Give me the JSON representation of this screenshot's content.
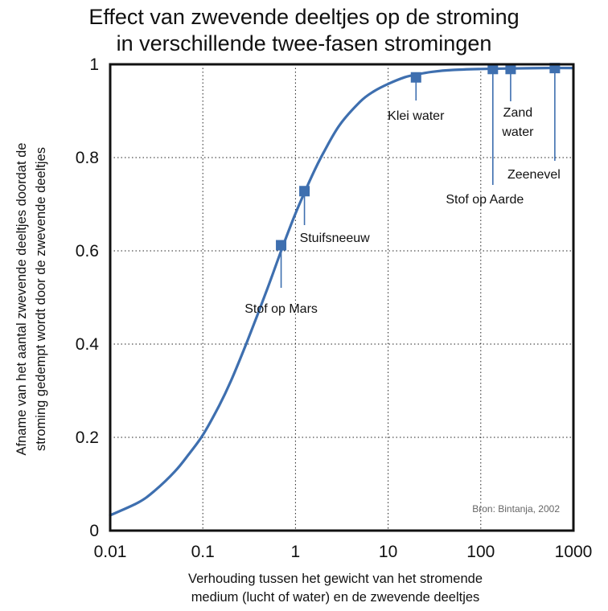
{
  "chart_data": {
    "type": "line",
    "title": [
      "Effect van zwevende deeltjes op de stroming",
      "in verschillende twee-fasen stromingen"
    ],
    "xlabel": [
      "Verhouding tussen het gewicht van het stromende",
      "medium (lucht of water) en de zwevende deeltjes"
    ],
    "ylabel": [
      "Afname van het aantal zwevende deeltjes doordat de",
      "stroming gedempt wordt door de zwevende deeltjes"
    ],
    "x_scale": "log",
    "xlim": [
      0.01,
      1000
    ],
    "ylim": [
      0,
      1
    ],
    "grid": true,
    "x_ticks": [
      {
        "v": 0.01,
        "label": "0.01"
      },
      {
        "v": 0.1,
        "label": "0.1"
      },
      {
        "v": 1,
        "label": "1"
      },
      {
        "v": 10,
        "label": "10"
      },
      {
        "v": 100,
        "label": "100"
      },
      {
        "v": 1000,
        "label": "1000"
      }
    ],
    "y_ticks": [
      {
        "v": 0,
        "label": "0"
      },
      {
        "v": 0.2,
        "label": "0.2"
      },
      {
        "v": 0.4,
        "label": "0.4"
      },
      {
        "v": 0.6,
        "label": "0.6"
      },
      {
        "v": 0.8,
        "label": "0.8"
      },
      {
        "v": 1,
        "label": "1"
      }
    ],
    "curve": {
      "x": [
        0.01,
        0.02,
        0.03,
        0.05,
        0.07,
        0.1,
        0.15,
        0.2,
        0.3,
        0.5,
        0.7,
        1,
        1.5,
        2,
        3,
        5,
        7,
        10,
        15,
        20,
        30,
        50,
        100,
        200,
        500,
        1000
      ],
      "y": [
        0.033,
        0.06,
        0.085,
        0.127,
        0.163,
        0.205,
        0.268,
        0.32,
        0.405,
        0.52,
        0.6,
        0.68,
        0.76,
        0.81,
        0.87,
        0.92,
        0.942,
        0.958,
        0.972,
        0.978,
        0.984,
        0.988,
        0.99,
        0.991,
        0.992,
        0.992
      ]
    },
    "points": [
      {
        "label": "Stof op Mars",
        "x": 0.7,
        "y": 0.612
      },
      {
        "label": "Stuifsneeuw",
        "x": 1.25,
        "y": 0.728
      },
      {
        "label": "Klei water",
        "x": 20,
        "y": 0.972
      },
      {
        "label": "Stof op Aarde",
        "x": 135,
        "y": 0.99
      },
      {
        "label": "Zand water",
        "label_lines": [
          "Zand",
          "water"
        ],
        "x": 210,
        "y": 0.99
      },
      {
        "label": "Zeenevel",
        "x": 630,
        "y": 0.992
      }
    ],
    "line_color": "#3e6faf",
    "marker_color": "#3e6faf",
    "source_note": "Bron: Bintanja, 2002"
  }
}
